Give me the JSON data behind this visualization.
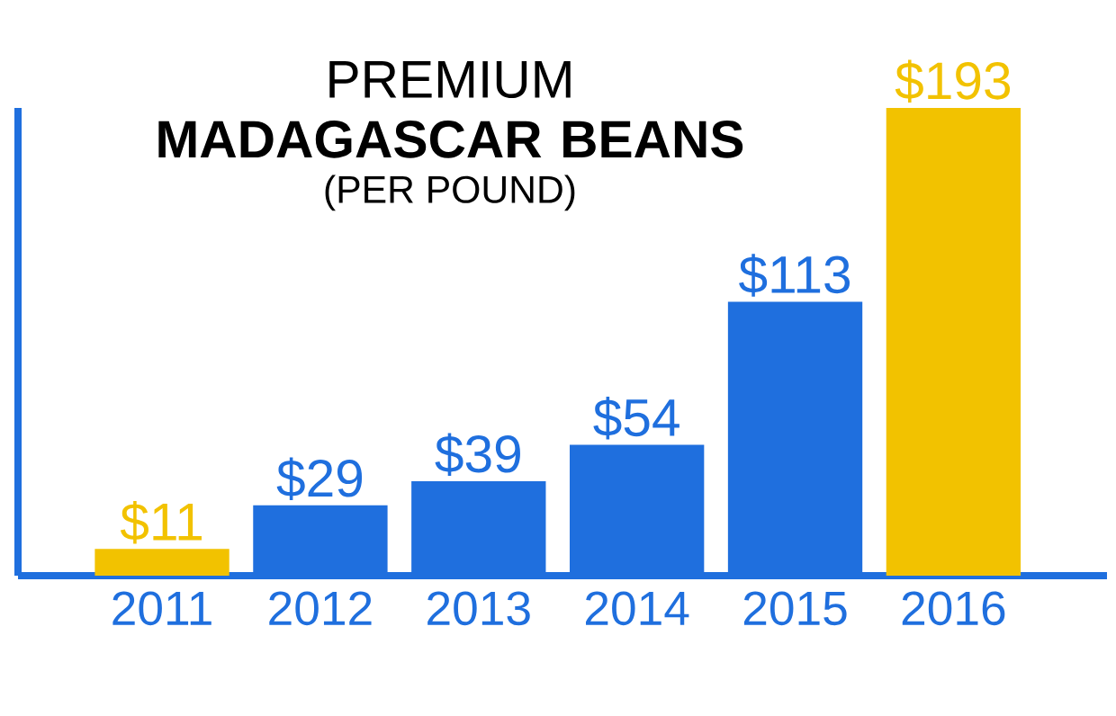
{
  "chart_data": {
    "type": "bar",
    "title": "PREMIUM **MADAGASCAR BEANS**",
    "subtitle": "(PER POUND)",
    "categories": [
      "2011",
      "2012",
      "2013",
      "2014",
      "2015",
      "2016"
    ],
    "values": [
      11,
      29,
      39,
      54,
      113,
      193
    ],
    "colors": [
      "#f2c200",
      "#1f6fde",
      "#1f6fde",
      "#1f6fde",
      "#1f6fde",
      "#f2c200"
    ],
    "value_labels": [
      "$11",
      "$29",
      "$39",
      "$54",
      "$113",
      "$193"
    ]
  }
}
